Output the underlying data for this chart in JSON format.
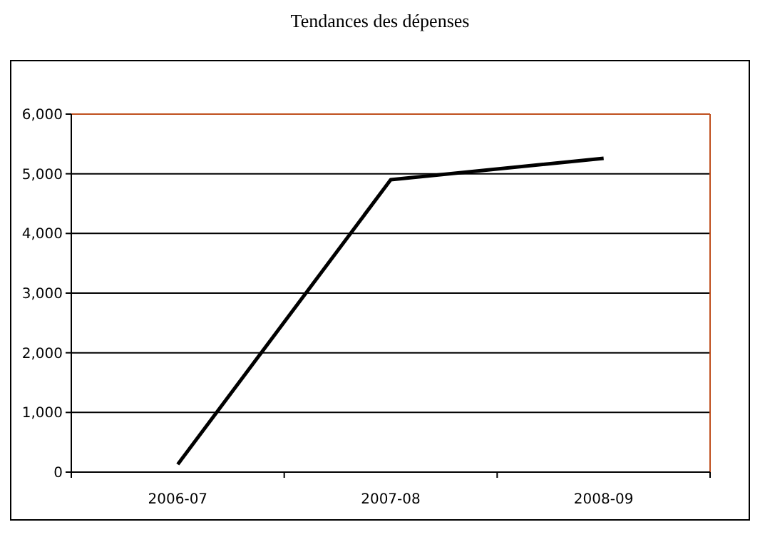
{
  "chart_data": {
    "type": "line",
    "title": "Tendances des dépenses",
    "categories": [
      "2006-07",
      "2007-08",
      "2008-09"
    ],
    "series": [
      {
        "color": "#000000",
        "values": [
          130,
          4900,
          5260
        ]
      }
    ],
    "ylim": [
      0,
      6000
    ],
    "yticks": [
      {
        "value": 0,
        "label": "0"
      },
      {
        "value": 1000,
        "label": "1,000"
      },
      {
        "value": 2000,
        "label": "2,000"
      },
      {
        "value": 3000,
        "label": "3,000"
      },
      {
        "value": 4000,
        "label": "4,000"
      },
      {
        "value": 5000,
        "label": "5,000"
      },
      {
        "value": 6000,
        "label": "6,000"
      }
    ],
    "grid": "y",
    "marker": "none",
    "line_style": "solid"
  }
}
